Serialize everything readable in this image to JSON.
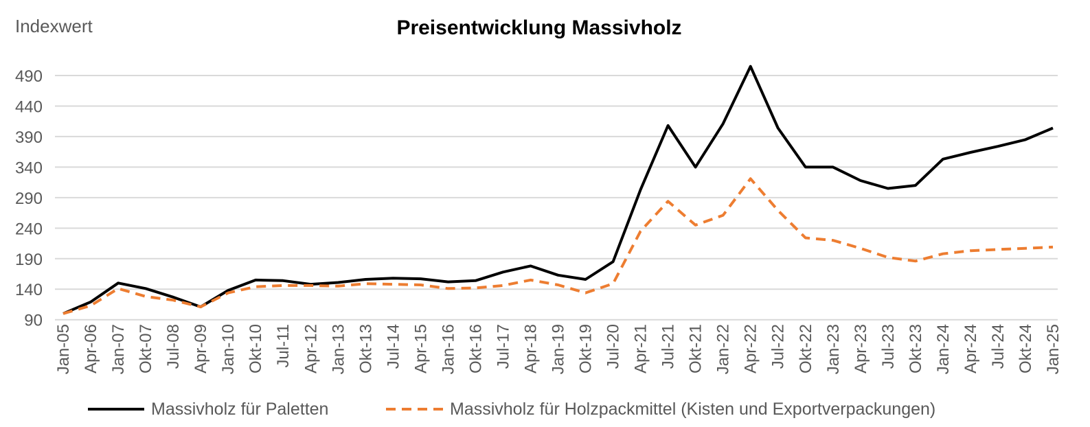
{
  "chart_data": {
    "type": "line",
    "title": "Preisentwicklung Massivholz",
    "ylabel": "Indexwert",
    "xlabel": "",
    "ylim": [
      90,
      490
    ],
    "yticks": [
      90,
      140,
      190,
      240,
      290,
      340,
      390,
      440,
      490
    ],
    "grid": true,
    "legend_position": "bottom",
    "categories": [
      "Jan-05",
      "Apr-06",
      "Jan-07",
      "Okt-07",
      "Jul-08",
      "Apr-09",
      "Jan-10",
      "Okt-10",
      "Jul-11",
      "Apr-12",
      "Jan-13",
      "Okt-13",
      "Jul-14",
      "Apr-15",
      "Jan-16",
      "Okt-16",
      "Jul-17",
      "Apr-18",
      "Jan-19",
      "Okt-19",
      "Jul-20",
      "Apr-21",
      "Jul-21",
      "Okt-21",
      "Jan-22",
      "Apr-22",
      "Jul-22",
      "Okt-22",
      "Jan-23",
      "Apr-23",
      "Jul-23",
      "Okt-23",
      "Jan-24",
      "Apr-24",
      "Jul-24",
      "Okt-24",
      "Jan-25"
    ],
    "series": [
      {
        "name": "Massivholz für Paletten",
        "color": "#000000",
        "style": "solid",
        "values": [
          100,
          119,
          150,
          141,
          127,
          111,
          138,
          155,
          154,
          148,
          151,
          156,
          158,
          157,
          152,
          154,
          168,
          178,
          163,
          156,
          185,
          303,
          408,
          340,
          411,
          505,
          404,
          340,
          340,
          318,
          305,
          310,
          353,
          364,
          374,
          385,
          404
        ]
      },
      {
        "name": "Massivholz für Holzpackmittel (Kisten und Exportverpackungen)",
        "color": "#ED7D31",
        "style": "dashed",
        "values": [
          100,
          113,
          141,
          128,
          122,
          111,
          134,
          144,
          146,
          146,
          145,
          149,
          148,
          147,
          141,
          142,
          146,
          155,
          147,
          134,
          149,
          235,
          284,
          245,
          261,
          321,
          269,
          224,
          220,
          207,
          192,
          186,
          198,
          203,
          205,
          207,
          209
        ]
      }
    ]
  }
}
